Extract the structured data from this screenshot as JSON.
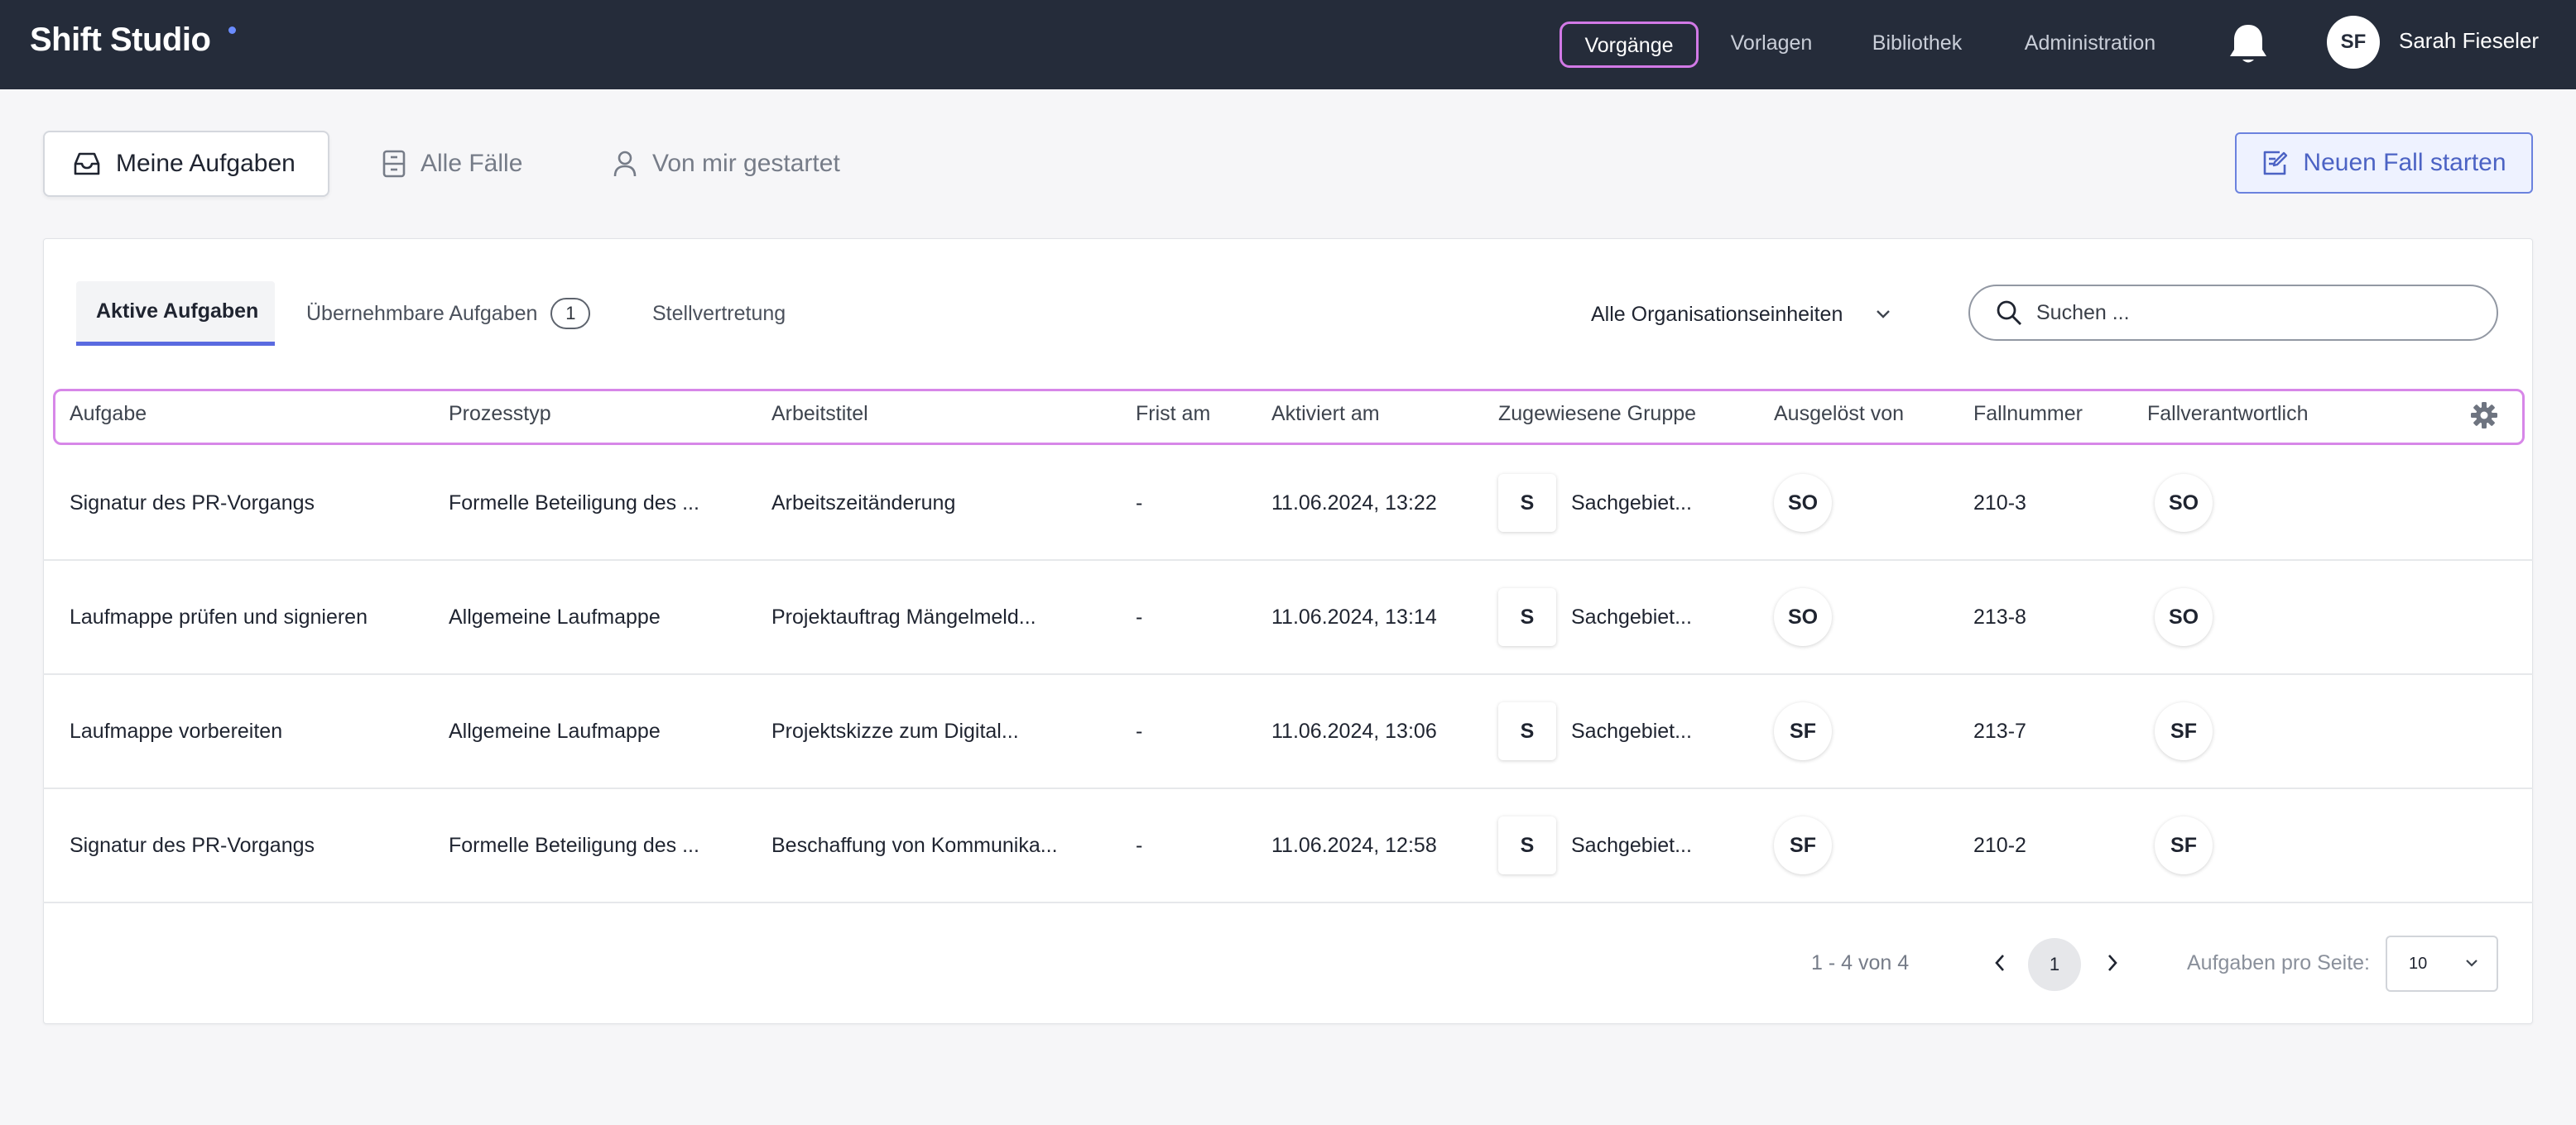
{
  "app": {
    "name": "Shift Studio"
  },
  "nav": [
    {
      "label": "Vorgänge",
      "active": true
    },
    {
      "label": "Vorlagen"
    },
    {
      "label": "Bibliothek"
    },
    {
      "label": "Administration"
    }
  ],
  "user": {
    "initials": "SF",
    "name": "Sarah Fieseler"
  },
  "view_tabs": [
    {
      "label": "Meine Aufgaben",
      "icon": "inbox-icon",
      "active": true
    },
    {
      "label": "Alle Fälle",
      "icon": "folder-icon"
    },
    {
      "label": "Von mir gestartet",
      "icon": "person-icon"
    }
  ],
  "new_case_button": {
    "label": "Neuen Fall starten",
    "icon": "edit-document-icon"
  },
  "sub_tabs": [
    {
      "label": "Aktive Aufgaben",
      "active": true
    },
    {
      "label": "Übernehmbare Aufgaben",
      "count": "1"
    },
    {
      "label": "Stellvertretung"
    }
  ],
  "org_filter": {
    "value": "Alle Organisationseinheiten"
  },
  "search": {
    "placeholder": "Suchen ..."
  },
  "columns": [
    "Aufgabe",
    "Prozesstyp",
    "Arbeitstitel",
    "Frist am",
    "Aktiviert am",
    "Zugewiesene Gruppe",
    "Ausgelöst von",
    "Fallnummer",
    "Fallverantwortlich"
  ],
  "rows": [
    {
      "task": "Signatur des PR-Vorgangs",
      "process": "Formelle Beteiligung des ...",
      "title": "Arbeitszeitänderung",
      "deadline": "-",
      "activated": "11.06.2024, 13:22",
      "group_initial": "S",
      "group": "Sachgebiet...",
      "triggered_by": "SO",
      "case_no": "210-3",
      "owner": "SO"
    },
    {
      "task": "Laufmappe prüfen und signieren",
      "process": "Allgemeine Laufmappe",
      "title": "Projektauftrag Mängelmeld...",
      "deadline": "-",
      "activated": "11.06.2024, 13:14",
      "group_initial": "S",
      "group": "Sachgebiet...",
      "triggered_by": "SO",
      "case_no": "213-8",
      "owner": "SO"
    },
    {
      "task": "Laufmappe vorbereiten",
      "process": "Allgemeine Laufmappe",
      "title": "Projektskizze zum Digital...",
      "deadline": "-",
      "activated": "11.06.2024, 13:06",
      "group_initial": "S",
      "group": "Sachgebiet...",
      "triggered_by": "SF",
      "case_no": "213-7",
      "owner": "SF"
    },
    {
      "task": "Signatur des PR-Vorgangs",
      "process": "Formelle Beteiligung des ...",
      "title": "Beschaffung von Kommunika...",
      "deadline": "-",
      "activated": "11.06.2024, 12:58",
      "group_initial": "S",
      "group": "Sachgebiet...",
      "triggered_by": "SF",
      "case_no": "210-2",
      "owner": "SF"
    }
  ],
  "pagination": {
    "range": "1 - 4 von 4",
    "current_page": "1",
    "per_page_label": "Aufgaben pro Seite:",
    "per_page": "10"
  },
  "colors": {
    "topbar": "#252c3a",
    "accent": "#5a6ae0",
    "highlight": "#d787e8"
  }
}
